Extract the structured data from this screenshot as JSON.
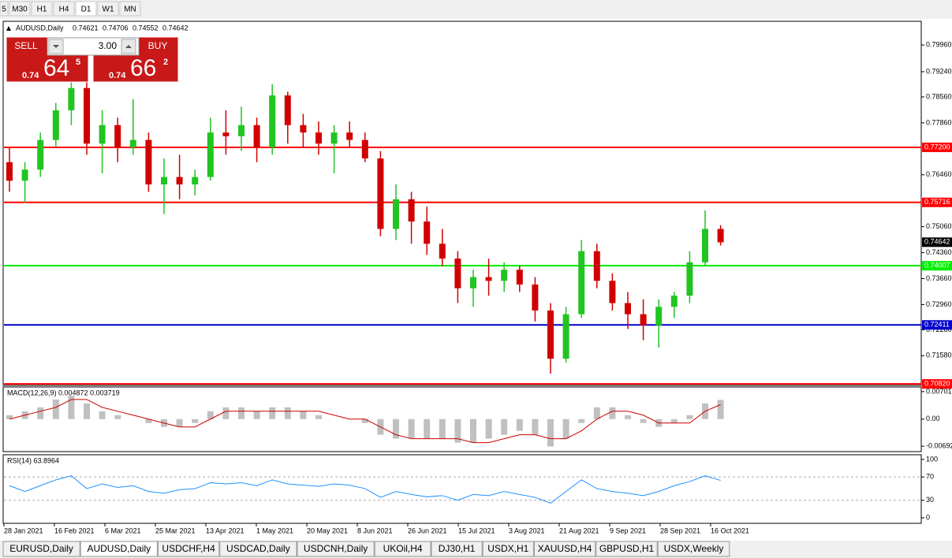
{
  "toolbar": {
    "timeframes": [
      "5",
      "M30",
      "H1",
      "H4",
      "D1",
      "W1",
      "MN"
    ],
    "active": "D1"
  },
  "trade_panel": {
    "sell": "SELL",
    "buy": "BUY",
    "lots": "3.00",
    "sell_price": {
      "prefix": "0.74",
      "big": "64",
      "small": "5"
    },
    "buy_price": {
      "prefix": "0.74",
      "big": "66",
      "small": "2"
    }
  },
  "chart_data": [
    {
      "type": "candlestick",
      "title": "AUDUSD,Daily",
      "quote": [
        0.74621,
        0.74706,
        0.74552,
        0.74642
      ],
      "up_color": "#21c421",
      "down_color": "#d10000",
      "open": [
        0.768,
        0.763,
        0.766,
        0.774,
        0.782,
        0.788,
        0.773,
        0.778,
        0.772,
        0.774,
        0.762,
        0.764,
        0.762,
        0.764,
        0.776,
        0.775,
        0.778,
        0.772,
        0.786,
        0.778,
        0.776,
        0.773,
        0.776,
        0.774,
        0.769,
        0.75,
        0.758,
        0.752,
        0.746,
        0.742,
        0.734,
        0.737,
        0.736,
        0.739,
        0.735,
        0.728,
        0.715,
        0.727,
        0.744,
        0.736,
        0.73,
        0.727,
        0.724,
        0.729,
        0.732,
        0.741,
        0.75
      ],
      "high": [
        0.772,
        0.768,
        0.776,
        0.784,
        0.791,
        0.79,
        0.782,
        0.78,
        0.785,
        0.776,
        0.769,
        0.77,
        0.766,
        0.78,
        0.782,
        0.783,
        0.78,
        0.789,
        0.787,
        0.781,
        0.779,
        0.778,
        0.779,
        0.776,
        0.771,
        0.762,
        0.76,
        0.756,
        0.75,
        0.744,
        0.739,
        0.742,
        0.741,
        0.74,
        0.737,
        0.73,
        0.729,
        0.747,
        0.746,
        0.738,
        0.733,
        0.731,
        0.731,
        0.733,
        0.744,
        0.755,
        0.751
      ],
      "low": [
        0.76,
        0.757,
        0.764,
        0.772,
        0.778,
        0.77,
        0.765,
        0.768,
        0.77,
        0.76,
        0.754,
        0.758,
        0.759,
        0.763,
        0.77,
        0.771,
        0.768,
        0.77,
        0.773,
        0.772,
        0.77,
        0.765,
        0.772,
        0.768,
        0.748,
        0.747,
        0.746,
        0.743,
        0.74,
        0.73,
        0.729,
        0.732,
        0.733,
        0.733,
        0.725,
        0.711,
        0.714,
        0.726,
        0.734,
        0.728,
        0.723,
        0.72,
        0.718,
        0.726,
        0.73,
        0.74,
        0.7455
      ],
      "close": [
        0.763,
        0.766,
        0.774,
        0.782,
        0.788,
        0.773,
        0.778,
        0.772,
        0.774,
        0.762,
        0.764,
        0.762,
        0.764,
        0.776,
        0.775,
        0.778,
        0.772,
        0.786,
        0.778,
        0.776,
        0.773,
        0.776,
        0.774,
        0.769,
        0.75,
        0.758,
        0.752,
        0.746,
        0.742,
        0.734,
        0.737,
        0.736,
        0.739,
        0.735,
        0.728,
        0.715,
        0.727,
        0.744,
        0.736,
        0.73,
        0.727,
        0.724,
        0.729,
        0.732,
        0.741,
        0.75,
        0.7464
      ],
      "ylim": [
        0.7078,
        0.806
      ],
      "yticks": [
        {
          "value": 0.7996,
          "label": "0.79960"
        },
        {
          "value": 0.7924,
          "label": "0.79240"
        },
        {
          "value": 0.7856,
          "label": "0.78560"
        },
        {
          "value": 0.7786,
          "label": "0.77860"
        },
        {
          "value": 0.7646,
          "label": "0.76460"
        },
        {
          "value": 0.7506,
          "label": "0.75060"
        },
        {
          "value": 0.7436,
          "label": "0.74360"
        },
        {
          "value": 0.7366,
          "label": "0.73660"
        },
        {
          "value": 0.7296,
          "label": "0.72960"
        },
        {
          "value": 0.7228,
          "label": "0.72280"
        },
        {
          "value": 0.7158,
          "label": "0.71580"
        }
      ],
      "levels": [
        {
          "value": 0.772,
          "label": "0.77200",
          "color": "#ff0000"
        },
        {
          "value": 0.75716,
          "label": "0.75716",
          "color": "#ff0000"
        },
        {
          "value": 0.74007,
          "label": "0.74007",
          "color": "#00ee00"
        },
        {
          "value": 0.72411,
          "label": "0.72411",
          "color": "#0000cc"
        },
        {
          "value": 0.7082,
          "label": "0.70820",
          "color": "#ff0000"
        }
      ]
    },
    {
      "type": "bar",
      "title": "MACD(12,26,9) 0.004872 0.003719",
      "color": "#c0c0c0",
      "signal_color": "#cc0000",
      "values": [
        0.001,
        0.002,
        0.003,
        0.005,
        0.006,
        0.004,
        0.002,
        0.001,
        0,
        -0.001,
        -0.002,
        -0.002,
        -0.001,
        0.002,
        0.003,
        0.003,
        0.002,
        0.003,
        0.003,
        0.002,
        0.001,
        0,
        0,
        -0.001,
        -0.004,
        -0.005,
        -0.005,
        -0.005,
        -0.005,
        -0.006,
        -0.006,
        -0.005,
        -0.004,
        -0.003,
        -0.004,
        -0.007,
        -0.005,
        -0.001,
        0.003,
        0.003,
        0.001,
        -0.001,
        -0.002,
        -0.001,
        0.001,
        0.004,
        0.0049
      ],
      "signal": [
        0,
        0.001,
        0.002,
        0.003,
        0.005,
        0.005,
        0.003,
        0.002,
        0.001,
        0,
        -0.001,
        -0.002,
        -0.002,
        0,
        0.002,
        0.002,
        0.002,
        0.002,
        0.002,
        0.002,
        0.002,
        0.001,
        0,
        0,
        -0.002,
        -0.004,
        -0.005,
        -0.005,
        -0.005,
        -0.005,
        -0.006,
        -0.006,
        -0.005,
        -0.004,
        -0.004,
        -0.005,
        -0.005,
        -0.003,
        0,
        0.002,
        0.002,
        0.001,
        -0.001,
        -0.001,
        -0.001,
        0.002,
        0.0037
      ],
      "ylim": [
        -0.0083,
        0.0082
      ],
      "yticks": [
        0.007015,
        {
          "value": 0,
          "label": "0.00"
        },
        -0.00692
      ]
    },
    {
      "type": "line",
      "title": "RSI(14) 63.8964",
      "color": "#1e90ff",
      "values": [
        55,
        45,
        55,
        65,
        72,
        50,
        58,
        52,
        55,
        45,
        42,
        48,
        50,
        60,
        58,
        60,
        55,
        65,
        58,
        56,
        54,
        58,
        56,
        50,
        35,
        45,
        40,
        36,
        38,
        30,
        40,
        38,
        45,
        40,
        35,
        25,
        45,
        65,
        50,
        45,
        42,
        38,
        45,
        55,
        62,
        72,
        64
      ],
      "ylim": [
        -9.5,
        108
      ],
      "yticks": [
        100,
        70,
        30,
        0
      ],
      "levels": [
        70,
        30
      ]
    }
  ],
  "time_axis": {
    "labels": [
      "28 Jan 2021",
      "16 Feb 2021",
      "6 Mar 2021",
      "25 Mar 2021",
      "13 Apr 2021",
      "1 May 2021",
      "20 May 2021",
      "8 Jun 2021",
      "26 Jun 2021",
      "15 Jul 2021",
      "3 Aug 2021",
      "21 Aug 2021",
      "9 Sep 2021",
      "28 Sep 2021",
      "16 Oct 2021"
    ]
  },
  "tabs": {
    "items": [
      "EURUSD,Daily",
      "AUDUSD,Daily",
      "USDCHF,H4",
      "USDCAD,Daily",
      "USDCNH,Daily",
      "UKOil,H4",
      "DJ30,H1",
      "USDX,H1",
      "XAUUSD,H4",
      "GBPUSD,H1",
      "USDX,Weekly"
    ],
    "active": 1
  }
}
